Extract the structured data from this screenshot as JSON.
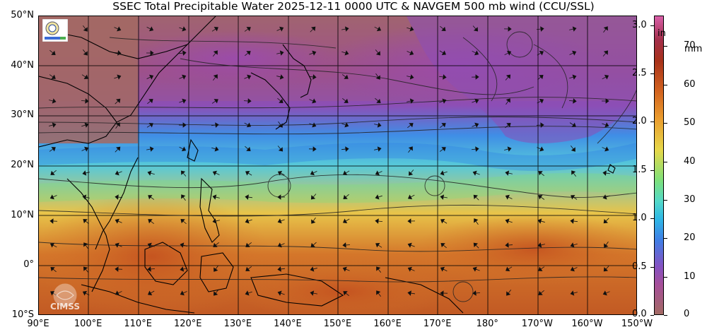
{
  "title": "SSEC Total Precipitable Water  2025-12-11 0000 UTC & NAVGEM 500 mb wind (CCU/SSL)",
  "lat_labels": [
    "50°N",
    "40°N",
    "30°N",
    "20°N",
    "10°N",
    "0°",
    "10°S"
  ],
  "lon_labels": [
    "90°E",
    "100°E",
    "110°E",
    "120°E",
    "130°E",
    "140°E",
    "150°E",
    "160°E",
    "170°E",
    "180°",
    "170°W",
    "160°W",
    "150°W"
  ],
  "colorbar": {
    "inch_unit": "in",
    "mm_unit": "mm",
    "inch_ticks": [
      "3.0",
      "2.5",
      "2.0",
      "1.5",
      "1.0",
      "0.5",
      "0.0"
    ],
    "mm_ticks": [
      "70",
      "60",
      "50",
      "40",
      "30",
      "20",
      "10",
      "0"
    ],
    "range_in": [
      0,
      3.1
    ],
    "range_mm": [
      0,
      78
    ]
  },
  "logos": {
    "bottom_left": "CIMSS",
    "top_left_icon": "noaa-emblem-icon"
  },
  "colors": {
    "dry": "#a36a63",
    "moist_low": "#8c4fb6",
    "mid": "#3f8ee6",
    "wet": "#d4762a"
  }
}
